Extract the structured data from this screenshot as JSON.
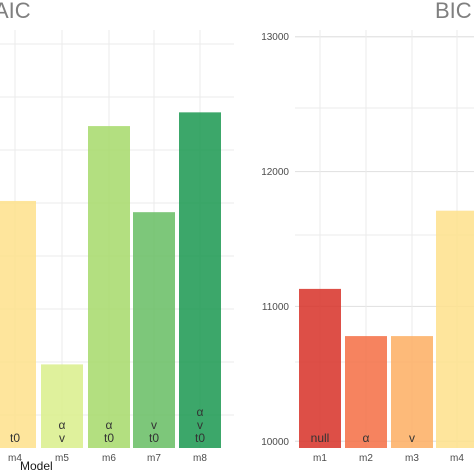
{
  "chart_data": [
    {
      "type": "bar",
      "title": "AIC",
      "xlabel": "Model",
      "ylabel": "",
      "ylim": [
        9900,
        13250
      ],
      "grid": true,
      "categories": [
        "m4",
        "m5",
        "m6",
        "m7",
        "m8"
      ],
      "values": [
        11880,
        10570,
        12480,
        11790,
        12590
      ],
      "bar_labels": [
        [
          "t0"
        ],
        [
          "α",
          "v"
        ],
        [
          "α",
          "t0"
        ],
        [
          "v",
          "t0"
        ],
        [
          "α",
          "v",
          "t0"
        ]
      ],
      "colors": [
        "#fee08b",
        "#d9ef8b",
        "#a6d96a",
        "#66bd63",
        "#1a9850"
      ]
    },
    {
      "type": "bar",
      "title": "BIC",
      "xlabel": "",
      "ylabel": "",
      "ylim": [
        9950,
        13050
      ],
      "grid": true,
      "y_ticks": [
        10000,
        11000,
        12000,
        13000
      ],
      "categories": [
        "m1",
        "m2",
        "m3",
        "m4"
      ],
      "values": [
        11130,
        10780,
        10780,
        11710
      ],
      "bar_labels": [
        [
          "null"
        ],
        [
          "α"
        ],
        [
          "v"
        ],
        []
      ],
      "colors": [
        "#d73027",
        "#f46d43",
        "#fdae61",
        "#fee08b"
      ]
    }
  ]
}
